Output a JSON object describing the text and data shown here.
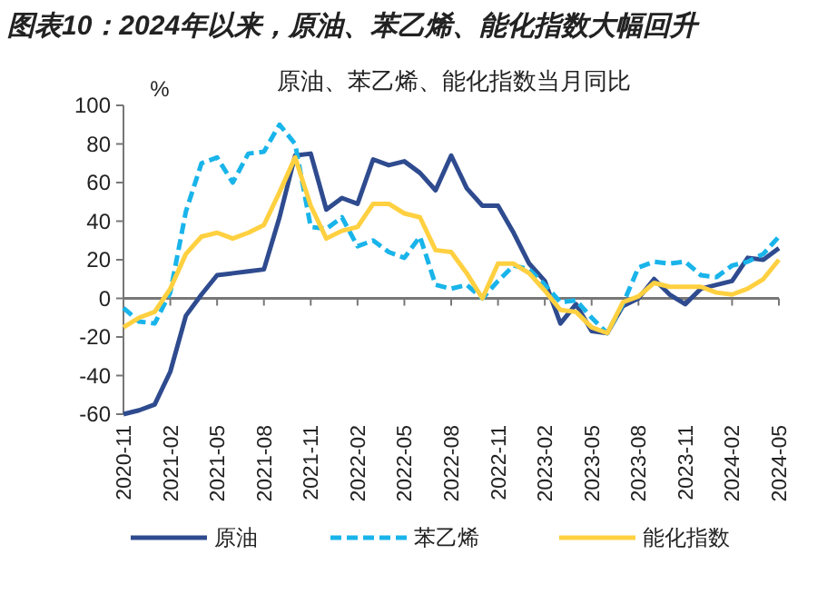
{
  "chart_data": {
    "type": "line",
    "title": "图表10：2024年以来，原油、苯乙烯、能化指数大幅回升",
    "subtitle": "原油、苯乙烯、能化指数当月同比",
    "ylabel": "%",
    "categories": [
      "2020-11",
      null,
      null,
      "2021-02",
      null,
      null,
      "2021-05",
      null,
      null,
      "2021-08",
      null,
      null,
      "2021-11",
      null,
      null,
      "2022-02",
      null,
      null,
      "2022-05",
      null,
      null,
      "2022-08",
      null,
      null,
      "2022-11",
      null,
      null,
      "2023-02",
      null,
      null,
      "2023-05",
      null,
      null,
      "2023-08",
      null,
      null,
      "2023-11",
      null,
      null,
      "2024-02",
      null,
      null,
      "2024-05"
    ],
    "ylim": [
      -60,
      100
    ],
    "yticks": [
      -60,
      -40,
      -20,
      0,
      20,
      40,
      60,
      80,
      100
    ],
    "legend": "bottom",
    "series": [
      {
        "name": "原油",
        "color": "#2f4b8f",
        "line_style": "solid",
        "values": [
          -60,
          -58,
          -55,
          -38,
          -9,
          2,
          12,
          13,
          14,
          15,
          42,
          74,
          75,
          46,
          52,
          49,
          72,
          69,
          71,
          65,
          56,
          74,
          57,
          48,
          48,
          34,
          18,
          9,
          -13,
          -3,
          -17,
          -18,
          -4,
          0,
          10,
          2,
          -3,
          5,
          7,
          9,
          21,
          20,
          26
        ]
      },
      {
        "name": "苯乙烯",
        "color": "#19b4ea",
        "line_style": "dashed",
        "values": [
          -5,
          -12,
          -13,
          3,
          45,
          70,
          73,
          60,
          75,
          76,
          90,
          80,
          37,
          36,
          42,
          27,
          30,
          24,
          21,
          32,
          7,
          5,
          7,
          0,
          9,
          17,
          15,
          7,
          -2,
          -1,
          -10,
          -18,
          -3,
          16,
          19,
          18,
          19,
          12,
          11,
          17,
          19,
          23,
          32
        ]
      },
      {
        "name": "能化指数",
        "color": "#ffd040",
        "line_style": "solid",
        "values": [
          -15,
          -10,
          -7,
          5,
          23,
          32,
          34,
          31,
          34,
          38,
          55,
          73,
          48,
          31,
          35,
          37,
          49,
          49,
          44,
          42,
          25,
          24,
          13,
          0,
          18,
          18,
          13,
          4,
          -6,
          -7,
          -15,
          -18,
          -2,
          1,
          8,
          6,
          6,
          6,
          3,
          2,
          5,
          10,
          20
        ]
      }
    ]
  }
}
